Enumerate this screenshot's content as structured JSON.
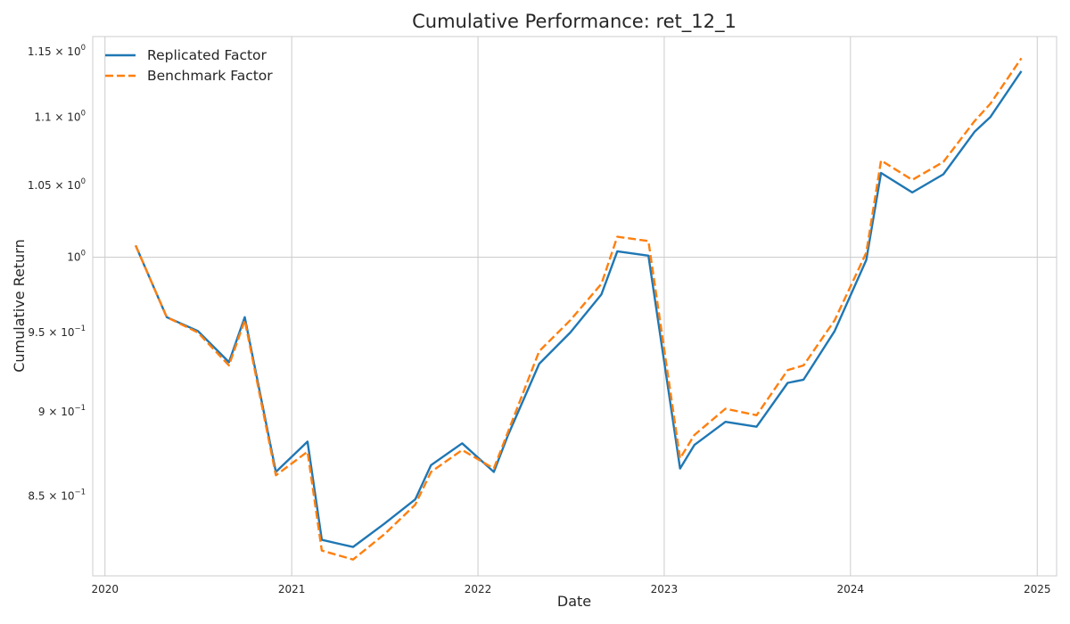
{
  "chart_data": {
    "type": "line",
    "title": "Cumulative Performance: ret_12_1",
    "xlabel": "Date",
    "ylabel": "Cumulative Return",
    "yscale": "log",
    "grid": true,
    "legend_position": "top-left",
    "xlim": [
      "2019-12-08",
      "2025-02-08"
    ],
    "ylim": [
      0.805,
      1.162
    ],
    "x_ticks": [
      {
        "date": "2020-01-01",
        "label": "2020"
      },
      {
        "date": "2021-01-01",
        "label": "2021"
      },
      {
        "date": "2022-01-01",
        "label": "2022"
      },
      {
        "date": "2023-01-01",
        "label": "2023"
      },
      {
        "date": "2024-01-01",
        "label": "2024"
      },
      {
        "date": "2025-01-01",
        "label": "2025"
      }
    ],
    "y_ticks": [
      {
        "value": 0.85,
        "mantissa": "8.5",
        "exponent": "−1"
      },
      {
        "value": 0.9,
        "mantissa": "9",
        "exponent": "−1"
      },
      {
        "value": 0.95,
        "mantissa": "9.5",
        "exponent": "−1"
      },
      {
        "value": 1.0,
        "mantissa": "",
        "exponent": "0"
      },
      {
        "value": 1.05,
        "mantissa": "1.05",
        "exponent": "0"
      },
      {
        "value": 1.1,
        "mantissa": "1.1",
        "exponent": "0"
      },
      {
        "value": 1.15,
        "mantissa": "1.15",
        "exponent": "0"
      }
    ],
    "x": [
      "2020-03-01",
      "2020-05-01",
      "2020-07-01",
      "2020-08-31",
      "2020-10-01",
      "2020-12-01",
      "2021-02-01",
      "2021-03-01",
      "2021-05-01",
      "2021-07-01",
      "2021-08-31",
      "2021-10-01",
      "2021-12-01",
      "2022-02-01",
      "2022-03-01",
      "2022-05-01",
      "2022-07-01",
      "2022-08-31",
      "2022-10-01",
      "2022-12-01",
      "2023-02-01",
      "2023-03-01",
      "2023-05-01",
      "2023-07-01",
      "2023-08-31",
      "2023-10-01",
      "2023-12-01",
      "2024-02-01",
      "2024-03-01",
      "2024-05-01",
      "2024-07-01",
      "2024-08-31",
      "2024-10-01",
      "2024-12-01"
    ],
    "series": [
      {
        "name": "Replicated Factor",
        "color": "#1f77b4",
        "dash": "solid",
        "values": [
          1.008,
          0.96,
          0.951,
          0.931,
          0.96,
          0.864,
          0.882,
          0.825,
          0.821,
          0.834,
          0.848,
          0.868,
          0.881,
          0.864,
          0.886,
          0.93,
          0.95,
          0.975,
          1.004,
          1.001,
          0.866,
          0.88,
          0.894,
          0.891,
          0.918,
          0.92,
          0.951,
          0.998,
          1.059,
          1.045,
          1.058,
          1.089,
          1.1,
          1.135
        ]
      },
      {
        "name": "Benchmark Factor",
        "color": "#ff7f0e",
        "dash": "dashed",
        "values": [
          1.008,
          0.96,
          0.95,
          0.929,
          0.958,
          0.862,
          0.876,
          0.819,
          0.814,
          0.828,
          0.845,
          0.864,
          0.877,
          0.866,
          0.888,
          0.938,
          0.958,
          0.982,
          1.014,
          1.011,
          0.872,
          0.886,
          0.902,
          0.898,
          0.926,
          0.929,
          0.958,
          1.003,
          1.068,
          1.054,
          1.067,
          1.097,
          1.11,
          1.145
        ]
      }
    ]
  }
}
